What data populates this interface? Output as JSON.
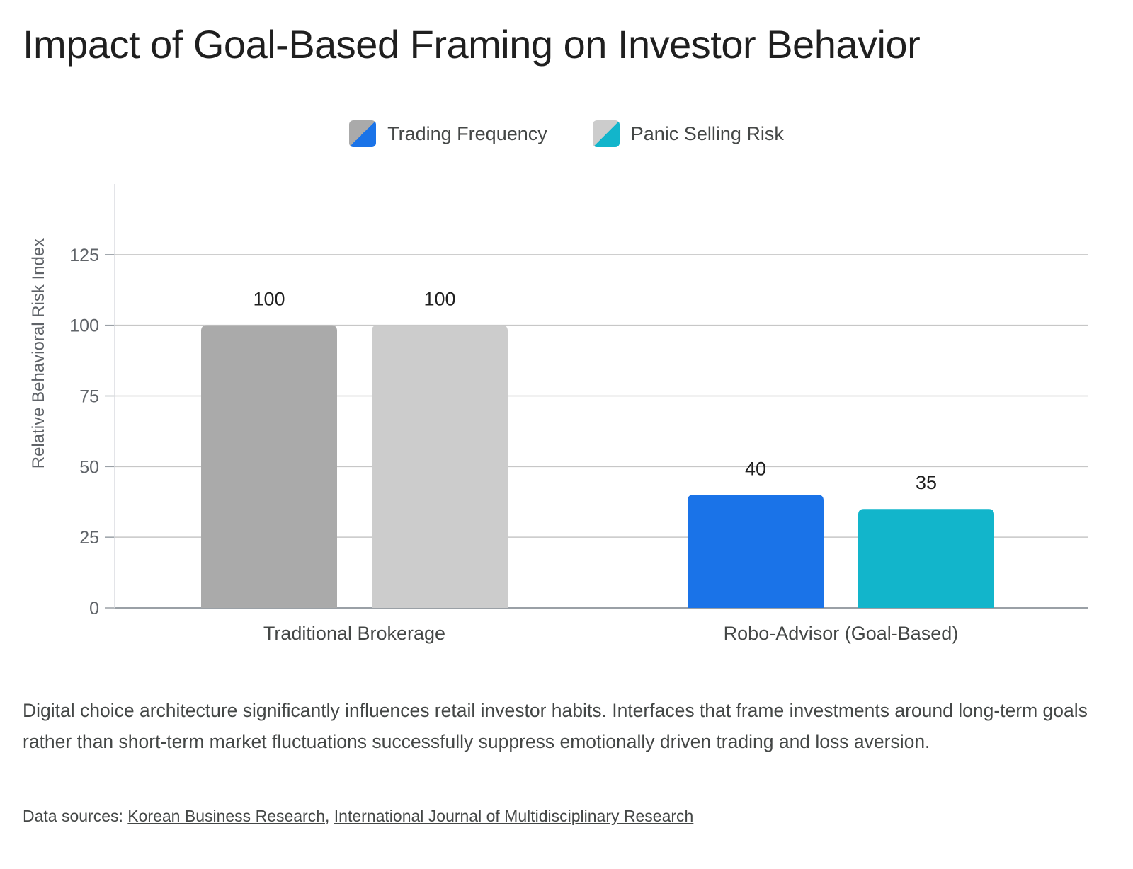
{
  "title": "Impact of Goal-Based Framing on Investor Behavior",
  "chart_data": {
    "type": "bar",
    "title": "Impact of Goal-Based Framing on Investor Behavior",
    "ylabel": "Relative Behavioral Risk Index",
    "xlabel": "",
    "categories": [
      "Traditional Brokerage",
      "Robo-Advisor (Goal-Based)"
    ],
    "series": [
      {
        "name": "Trading Frequency",
        "values": [
          100,
          40
        ],
        "colors": [
          "#aaaaaa",
          "#1a73e8"
        ]
      },
      {
        "name": "Panic Selling Risk",
        "values": [
          100,
          35
        ],
        "colors": [
          "#cccccc",
          "#12b5cb"
        ]
      }
    ],
    "ylim": [
      0,
      150
    ],
    "yticks": [
      0,
      25,
      50,
      75,
      100,
      125
    ],
    "data_labels": true,
    "grid": true,
    "legend_position": "top-center"
  },
  "caption": "Digital choice architecture significantly influences retail investor habits. Interfaces that frame investments around long-term goals rather than short-term market fluctuations successfully suppress emotionally driven trading and loss aversion.",
  "sources": {
    "prefix": "Data sources: ",
    "separator": ", ",
    "links": [
      "Korean Business Research",
      "International Journal of Multidisciplinary Research"
    ]
  }
}
